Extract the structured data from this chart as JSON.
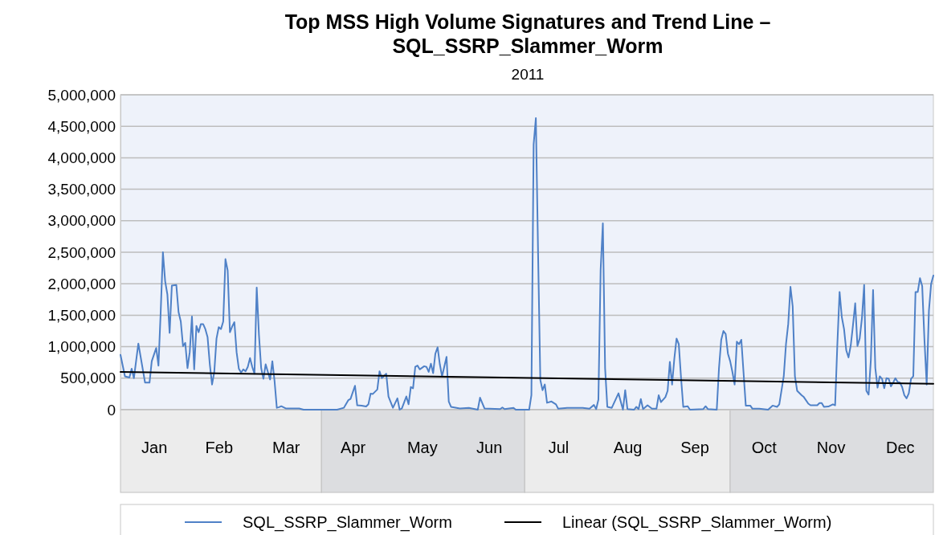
{
  "chart_data": {
    "type": "line",
    "title": "Top MSS High Volume Signatures and Trend Line – SQL_SSRP_Slammer_Worm",
    "subtitle": "2011",
    "xlim": [
      "2011-01-01",
      "2011-12-31"
    ],
    "xticks": [
      {
        "value": "2011-01-16",
        "label": "Jan"
      },
      {
        "value": "2011-02-14",
        "label": "Feb"
      },
      {
        "value": "2011-03-16",
        "label": "Mar"
      },
      {
        "value": "2011-04-15",
        "label": "Apr"
      },
      {
        "value": "2011-05-16",
        "label": "May"
      },
      {
        "value": "2011-06-15",
        "label": "Jun"
      },
      {
        "value": "2011-07-16",
        "label": "Jul"
      },
      {
        "value": "2011-08-16",
        "label": "Aug"
      },
      {
        "value": "2011-09-15",
        "label": "Sep"
      },
      {
        "value": "2011-10-16",
        "label": "Oct"
      },
      {
        "value": "2011-11-15",
        "label": "Nov"
      },
      {
        "value": "2011-12-16",
        "label": "Dec"
      }
    ],
    "ylim": [
      0,
      5000000
    ],
    "yticks": [
      {
        "value": 0,
        "label": "0"
      },
      {
        "value": 500000,
        "label": "500,000"
      },
      {
        "value": 1000000,
        "label": "1,000,000"
      },
      {
        "value": 1500000,
        "label": "1,500,000"
      },
      {
        "value": 2000000,
        "label": "2,000,000"
      },
      {
        "value": 2500000,
        "label": "2,500,000"
      },
      {
        "value": 3000000,
        "label": "3,000,000"
      },
      {
        "value": 3500000,
        "label": "3,500,000"
      },
      {
        "value": 4000000,
        "label": "4,000,000"
      },
      {
        "value": 4500000,
        "label": "4,500,000"
      },
      {
        "value": 5000000,
        "label": "5,000,000"
      }
    ],
    "grid": "y",
    "legend": "bottom",
    "marker": "none",
    "line_style": "solid",
    "series": [
      {
        "name": "SQL_SSRP_Slammer_Worm",
        "color": "#4f81c7",
        "x": [
          "2011-01-01",
          "2011-01-03",
          "2011-01-05",
          "2011-01-06",
          "2011-01-07",
          "2011-01-09",
          "2011-01-12",
          "2011-01-14",
          "2011-01-15",
          "2011-01-17",
          "2011-01-18",
          "2011-01-19",
          "2011-01-20",
          "2011-01-21",
          "2011-01-22",
          "2011-01-23",
          "2011-01-24",
          "2011-01-26",
          "2011-01-27",
          "2011-01-28",
          "2011-01-29",
          "2011-01-30",
          "2011-01-31",
          "2011-02-01",
          "2011-02-02",
          "2011-02-03",
          "2011-02-04",
          "2011-02-05",
          "2011-02-06",
          "2011-02-07",
          "2011-02-08",
          "2011-02-09",
          "2011-02-10",
          "2011-02-11",
          "2011-02-12",
          "2011-02-13",
          "2011-02-14",
          "2011-02-15",
          "2011-02-16",
          "2011-02-17",
          "2011-02-18",
          "2011-02-19",
          "2011-02-20",
          "2011-02-21",
          "2011-02-22",
          "2011-02-23",
          "2011-02-24",
          "2011-02-25",
          "2011-02-26",
          "2011-02-27",
          "2011-02-28",
          "2011-03-01",
          "2011-03-02",
          "2011-03-03",
          "2011-03-04",
          "2011-03-05",
          "2011-03-06",
          "2011-03-07",
          "2011-03-08",
          "2011-03-09",
          "2011-03-10",
          "2011-03-11",
          "2011-03-12",
          "2011-03-13",
          "2011-03-14",
          "2011-03-16",
          "2011-03-22",
          "2011-03-24",
          "2011-04-08",
          "2011-04-11",
          "2011-04-13",
          "2011-04-14",
          "2011-04-16",
          "2011-04-17",
          "2011-04-19",
          "2011-04-21",
          "2011-04-22",
          "2011-04-23",
          "2011-04-24",
          "2011-04-26",
          "2011-04-27",
          "2011-04-28",
          "2011-04-30",
          "2011-05-01",
          "2011-05-03",
          "2011-05-05",
          "2011-05-06",
          "2011-05-07",
          "2011-05-09",
          "2011-05-10",
          "2011-05-11",
          "2011-05-12",
          "2011-05-13",
          "2011-05-14",
          "2011-05-15",
          "2011-05-17",
          "2011-05-18",
          "2011-05-19",
          "2011-05-20",
          "2011-05-21",
          "2011-05-22",
          "2011-05-23",
          "2011-05-24",
          "2011-05-25",
          "2011-05-27",
          "2011-05-28",
          "2011-05-29",
          "2011-06-02",
          "2011-06-06",
          "2011-06-10",
          "2011-06-11",
          "2011-06-13",
          "2011-06-20",
          "2011-06-21",
          "2011-06-22",
          "2011-06-26",
          "2011-06-27",
          "2011-07-03",
          "2011-07-04",
          "2011-07-05",
          "2011-07-06",
          "2011-07-07",
          "2011-07-08",
          "2011-07-09",
          "2011-07-10",
          "2011-07-11",
          "2011-07-13",
          "2011-07-15",
          "2011-07-16",
          "2011-07-20",
          "2011-07-27",
          "2011-07-30",
          "2011-08-01",
          "2011-08-02",
          "2011-08-03",
          "2011-08-04",
          "2011-08-05",
          "2011-08-06",
          "2011-08-07",
          "2011-08-09",
          "2011-08-12",
          "2011-08-14",
          "2011-08-15",
          "2011-08-16",
          "2011-08-19",
          "2011-08-20",
          "2011-08-21",
          "2011-08-22",
          "2011-08-23",
          "2011-08-25",
          "2011-08-27",
          "2011-08-29",
          "2011-08-30",
          "2011-08-31",
          "2011-09-02",
          "2011-09-03",
          "2011-09-04",
          "2011-09-05",
          "2011-09-06",
          "2011-09-07",
          "2011-09-08",
          "2011-09-09",
          "2011-09-10",
          "2011-09-12",
          "2011-09-13",
          "2011-09-19",
          "2011-09-20",
          "2011-09-21",
          "2011-09-25",
          "2011-09-26",
          "2011-09-27",
          "2011-09-28",
          "2011-09-29",
          "2011-09-30",
          "2011-10-01",
          "2011-10-02",
          "2011-10-03",
          "2011-10-04",
          "2011-10-05",
          "2011-10-06",
          "2011-10-08",
          "2011-10-10",
          "2011-10-11",
          "2011-10-14",
          "2011-10-18",
          "2011-10-20",
          "2011-10-22",
          "2011-10-23",
          "2011-10-25",
          "2011-10-26",
          "2011-10-27",
          "2011-10-28",
          "2011-10-29",
          "2011-10-30",
          "2011-10-31",
          "2011-11-02",
          "2011-11-03",
          "2011-11-05",
          "2011-11-06",
          "2011-11-09",
          "2011-11-10",
          "2011-11-11",
          "2011-11-12",
          "2011-11-14",
          "2011-11-16",
          "2011-11-17",
          "2011-11-18",
          "2011-11-19",
          "2011-11-20",
          "2011-11-21",
          "2011-11-22",
          "2011-11-23",
          "2011-11-24",
          "2011-11-25",
          "2011-11-26",
          "2011-11-27",
          "2011-11-28",
          "2011-11-29",
          "2011-11-30",
          "2011-12-01",
          "2011-12-02",
          "2011-12-03",
          "2011-12-04",
          "2011-12-05",
          "2011-12-06",
          "2011-12-07",
          "2011-12-08",
          "2011-12-09",
          "2011-12-10",
          "2011-12-11",
          "2011-12-12",
          "2011-12-13",
          "2011-12-14",
          "2011-12-15",
          "2011-12-16",
          "2011-12-17",
          "2011-12-18",
          "2011-12-19",
          "2011-12-20",
          "2011-12-21",
          "2011-12-22",
          "2011-12-23",
          "2011-12-24",
          "2011-12-25",
          "2011-12-26",
          "2011-12-27",
          "2011-12-28",
          "2011-12-29",
          "2011-12-30",
          "2011-12-31"
        ],
        "values": [
          870000,
          530000,
          510000,
          650000,
          500000,
          1050000,
          430000,
          430000,
          770000,
          980000,
          700000,
          1550000,
          2500000,
          2040000,
          1830000,
          1220000,
          1970000,
          1980000,
          1550000,
          1400000,
          1010000,
          1060000,
          660000,
          910000,
          1480000,
          640000,
          1330000,
          1230000,
          1360000,
          1360000,
          1280000,
          1150000,
          720000,
          400000,
          600000,
          1130000,
          1310000,
          1280000,
          1400000,
          2390000,
          2210000,
          1230000,
          1320000,
          1390000,
          910000,
          650000,
          590000,
          640000,
          610000,
          680000,
          820000,
          680000,
          570000,
          1940000,
          1190000,
          660000,
          490000,
          720000,
          600000,
          480000,
          770000,
          450000,
          30000,
          40000,
          55000,
          20000,
          20000,
          0,
          0,
          30000,
          150000,
          170000,
          380000,
          70000,
          65000,
          50000,
          85000,
          255000,
          250000,
          320000,
          610000,
          500000,
          570000,
          210000,
          30000,
          180000,
          0,
          20000,
          210000,
          85000,
          360000,
          340000,
          680000,
          700000,
          640000,
          690000,
          680000,
          600000,
          730000,
          580000,
          890000,
          990000,
          720000,
          530000,
          840000,
          130000,
          45000,
          20000,
          30000,
          0,
          190000,
          20000,
          10000,
          35000,
          10000,
          30000,
          0,
          0,
          230000,
          4210000,
          4630000,
          2470000,
          470000,
          310000,
          400000,
          110000,
          130000,
          85000,
          15000,
          30000,
          30000,
          15000,
          75000,
          10000,
          160000,
          2220000,
          2960000,
          660000,
          45000,
          30000,
          260000,
          0,
          310000,
          10000,
          0,
          45000,
          10000,
          170000,
          10000,
          70000,
          15000,
          15000,
          230000,
          120000,
          200000,
          300000,
          760000,
          400000,
          810000,
          1130000,
          1040000,
          510000,
          45000,
          55000,
          0,
          10000,
          55000,
          10000,
          0,
          660000,
          1110000,
          1250000,
          1200000,
          890000,
          770000,
          600000,
          400000,
          1080000,
          1040000,
          1110000,
          65000,
          65000,
          15000,
          15000,
          0,
          65000,
          45000,
          85000,
          530000,
          1040000,
          1360000,
          1950000,
          1640000,
          530000,
          300000,
          230000,
          200000,
          95000,
          70000,
          70000,
          105000,
          105000,
          45000,
          50000,
          85000,
          70000,
          1040000,
          1870000,
          1470000,
          1280000,
          940000,
          830000,
          1020000,
          1340000,
          1690000,
          1010000,
          1130000,
          1450000,
          1980000,
          300000,
          240000,
          790000,
          1900000,
          660000,
          350000,
          530000,
          490000,
          340000,
          500000,
          490000,
          370000,
          430000,
          500000,
          440000,
          430000,
          360000,
          230000,
          180000,
          260000,
          490000,
          530000,
          1870000,
          1870000,
          2090000,
          1960000,
          1110000,
          400000,
          1570000,
          2000000,
          2130000
        ]
      },
      {
        "name": "Linear (SQL_SSRP_Slammer_Worm)",
        "color": "#000000",
        "x": [
          "2011-01-01",
          "2011-12-31"
        ],
        "values": [
          600000,
          410000
        ]
      }
    ]
  }
}
